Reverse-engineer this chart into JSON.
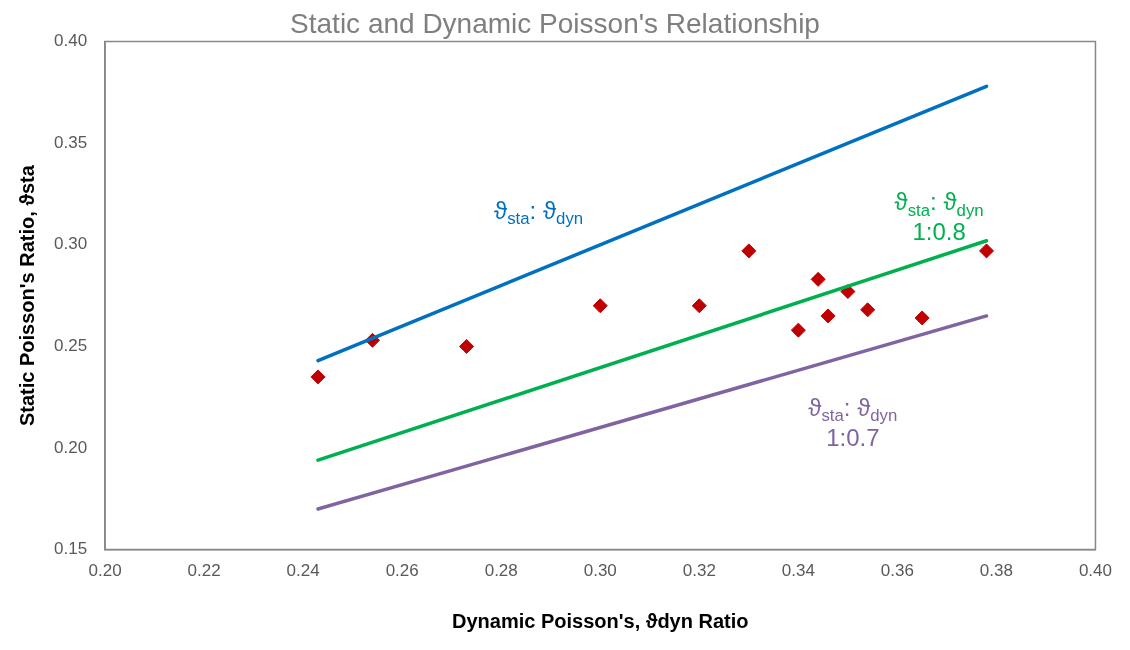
{
  "chart_data": {
    "type": "scatter",
    "title": "Static and Dynamic Poisson's Relationship",
    "xlabel": "Dynamic Poisson's, ϑdyn Ratio",
    "ylabel": "Static Poisson's Ratio, ϑsta",
    "xlim": [
      0.2,
      0.4
    ],
    "ylim": [
      0.15,
      0.4
    ],
    "xticks": [
      {
        "value": 0.2,
        "label": "0.20"
      },
      {
        "value": 0.22,
        "label": "0.22"
      },
      {
        "value": 0.24,
        "label": "0.24"
      },
      {
        "value": 0.26,
        "label": "0.26"
      },
      {
        "value": 0.28,
        "label": "0.28"
      },
      {
        "value": 0.3,
        "label": "0.30"
      },
      {
        "value": 0.32,
        "label": "0.32"
      },
      {
        "value": 0.34,
        "label": "0.34"
      },
      {
        "value": 0.36,
        "label": "0.36"
      },
      {
        "value": 0.38,
        "label": "0.38"
      },
      {
        "value": 0.4,
        "label": "0.40"
      }
    ],
    "yticks": [
      {
        "value": 0.15,
        "label": "0.15"
      },
      {
        "value": 0.2,
        "label": "0.20"
      },
      {
        "value": 0.25,
        "label": "0.25"
      },
      {
        "value": 0.3,
        "label": "0.30"
      },
      {
        "value": 0.35,
        "label": "0.35"
      },
      {
        "value": 0.4,
        "label": "0.40"
      }
    ],
    "grid": false,
    "legend": false,
    "series": [
      {
        "type": "line",
        "name": "ϑ$_{sta}$: ϑ$_{dyn}$",
        "color": "#0070c0",
        "x": [
          0.243,
          0.378
        ],
        "values": [
          0.243,
          0.378
        ],
        "marker": "none"
      },
      {
        "type": "line",
        "name": "ϑ$_{sta}$: ϑ$_{dyn}$ 1:0.8",
        "color": "#00b050",
        "x": [
          0.243,
          0.378
        ],
        "values": [
          0.194,
          0.302
        ],
        "marker": "none"
      },
      {
        "type": "line",
        "name": "ϑ$_{sta}$: ϑ$_{dyn}$ 1:0.7",
        "color": "#8064a2",
        "x": [
          0.243,
          0.378
        ],
        "values": [
          0.17,
          0.265
        ],
        "marker": "none"
      },
      {
        "type": "scatter",
        "color": "#c00000",
        "marker": "diamond",
        "x": [
          0.243,
          0.254,
          0.273,
          0.3,
          0.32,
          0.33,
          0.34,
          0.344,
          0.346,
          0.35,
          0.354,
          0.365,
          0.378
        ],
        "values": [
          0.235,
          0.253,
          0.25,
          0.27,
          0.27,
          0.297,
          0.258,
          0.283,
          0.265,
          0.277,
          0.268,
          0.264,
          0.297
        ]
      }
    ]
  }
}
